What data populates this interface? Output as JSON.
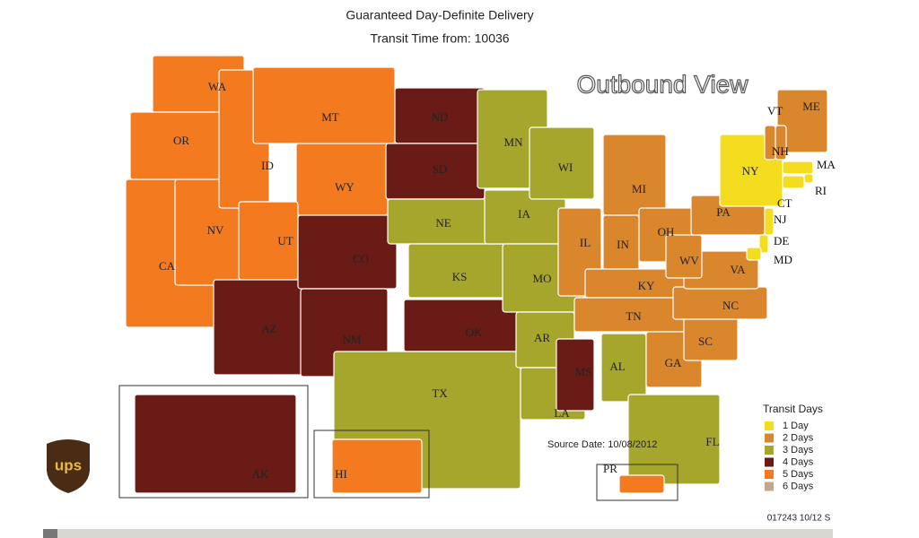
{
  "header": {
    "title": "Guaranteed Day-Definite Delivery",
    "subtitle": "Transit Time from: 10036",
    "view": "Outbound View"
  },
  "legend": {
    "title": "Transit Days",
    "items": [
      {
        "label": "1 Day",
        "color": "#f4dc1e"
      },
      {
        "label": "2 Days",
        "color": "#d9862c"
      },
      {
        "label": "3 Days",
        "color": "#a7a62c"
      },
      {
        "label": "4 Days",
        "color": "#6a1b16"
      },
      {
        "label": "5 Days",
        "color": "#f47a20"
      },
      {
        "label": "6 Days",
        "color": "#c2a78b"
      }
    ]
  },
  "states": [
    {
      "label": "WA",
      "color": "#f47a20"
    },
    {
      "label": "OR",
      "color": "#f47a20"
    },
    {
      "label": "CA",
      "color": "#f47a20"
    },
    {
      "label": "NV",
      "color": "#f47a20"
    },
    {
      "label": "ID",
      "color": "#f47a20"
    },
    {
      "label": "MT",
      "color": "#f47a20"
    },
    {
      "label": "WY",
      "color": "#f47a20"
    },
    {
      "label": "UT",
      "color": "#f47a20"
    },
    {
      "label": "AZ",
      "color": "#6a1b16"
    },
    {
      "label": "CO",
      "color": "#6a1b16"
    },
    {
      "label": "NM",
      "color": "#6a1b16"
    },
    {
      "label": "ND",
      "color": "#6a1b16"
    },
    {
      "label": "SD",
      "color": "#6a1b16"
    },
    {
      "label": "NE",
      "color": "#a7a62c"
    },
    {
      "label": "KS",
      "color": "#a7a62c"
    },
    {
      "label": "OK",
      "color": "#6a1b16"
    },
    {
      "label": "TX",
      "color": "#a7a62c"
    },
    {
      "label": "MN",
      "color": "#a7a62c"
    },
    {
      "label": "IA",
      "color": "#a7a62c"
    },
    {
      "label": "MO",
      "color": "#a7a62c"
    },
    {
      "label": "AR",
      "color": "#a7a62c"
    },
    {
      "label": "LA",
      "color": "#a7a62c"
    },
    {
      "label": "WI",
      "color": "#a7a62c"
    },
    {
      "label": "IL",
      "color": "#d9862c"
    },
    {
      "label": "MI",
      "color": "#d9862c"
    },
    {
      "label": "IN",
      "color": "#d9862c"
    },
    {
      "label": "OH",
      "color": "#d9862c"
    },
    {
      "label": "KY",
      "color": "#d9862c"
    },
    {
      "label": "TN",
      "color": "#d9862c"
    },
    {
      "label": "MS",
      "color": "#6a1b16"
    },
    {
      "label": "AL",
      "color": "#a7a62c"
    },
    {
      "label": "GA",
      "color": "#d9862c"
    },
    {
      "label": "FL",
      "color": "#a7a62c"
    },
    {
      "label": "SC",
      "color": "#d9862c"
    },
    {
      "label": "NC",
      "color": "#d9862c"
    },
    {
      "label": "VA",
      "color": "#d9862c"
    },
    {
      "label": "WV",
      "color": "#d9862c"
    },
    {
      "label": "PA",
      "color": "#d9862c"
    },
    {
      "label": "NY",
      "color": "#f4dc1e"
    },
    {
      "label": "ME",
      "color": "#d9862c"
    },
    {
      "label": "VT",
      "color": "#d9862c"
    },
    {
      "label": "NH",
      "color": "#d9862c"
    },
    {
      "label": "MA",
      "color": "#f4dc1e"
    },
    {
      "label": "RI",
      "color": "#f4dc1e"
    },
    {
      "label": "CT",
      "color": "#f4dc1e"
    },
    {
      "label": "NJ",
      "color": "#f4dc1e"
    },
    {
      "label": "DE",
      "color": "#f4dc1e"
    },
    {
      "label": "MD",
      "color": "#f4dc1e"
    },
    {
      "label": "AK",
      "color": "#6a1b16"
    },
    {
      "label": "HI",
      "color": "#f47a20"
    },
    {
      "label": "PR",
      "color": "#f47a20"
    }
  ],
  "source": "Source Date: 10/08/2012",
  "code": "017243 10/12 S",
  "logo": "ups"
}
